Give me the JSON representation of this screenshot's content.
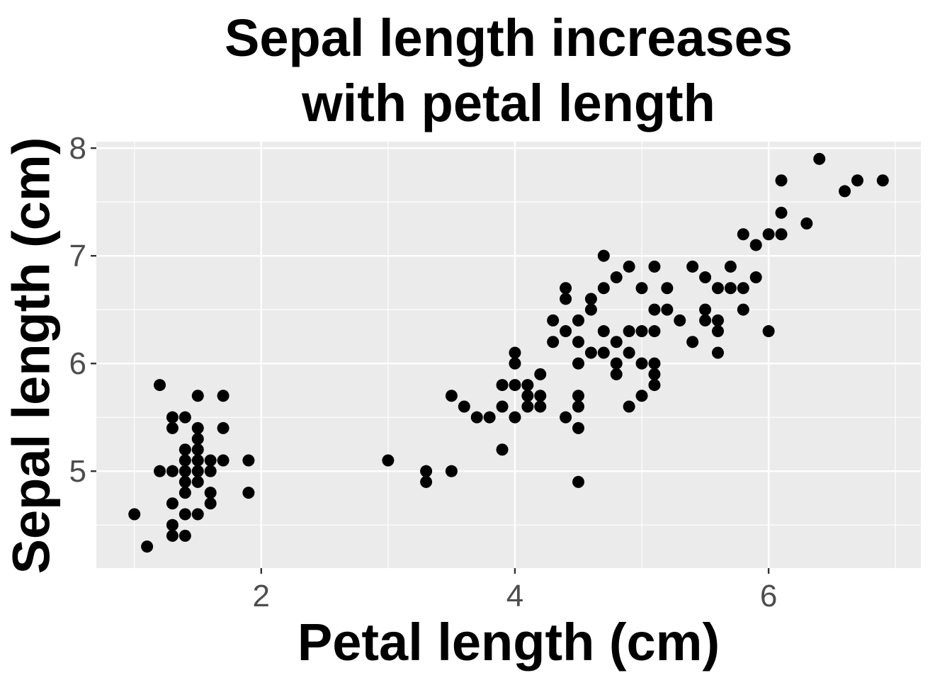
{
  "chart_data": {
    "type": "scatter",
    "title": "Sepal length increases\nwith petal length",
    "xlabel": "Petal length (cm)",
    "ylabel": "Sepal length (cm)",
    "xlim": [
      0.7,
      7.2
    ],
    "ylim": [
      4.1,
      8.06
    ],
    "x_ticks": [
      2,
      4,
      6
    ],
    "y_ticks": [
      5,
      6,
      7,
      8
    ],
    "x_tick_labels": [
      "2",
      "4",
      "6"
    ],
    "y_tick_labels": [
      "5",
      "6",
      "7",
      "8"
    ],
    "grid": true,
    "point_color": "#000000",
    "panel_color": "#ebebeb",
    "points": [
      {
        "x": 1.0,
        "y": 4.6
      },
      {
        "x": 1.1,
        "y": 4.3
      },
      {
        "x": 1.2,
        "y": 5.8
      },
      {
        "x": 1.2,
        "y": 5.0
      },
      {
        "x": 1.3,
        "y": 5.5
      },
      {
        "x": 1.3,
        "y": 5.4
      },
      {
        "x": 1.3,
        "y": 5.0
      },
      {
        "x": 1.3,
        "y": 4.7
      },
      {
        "x": 1.3,
        "y": 4.5
      },
      {
        "x": 1.3,
        "y": 4.4
      },
      {
        "x": 1.4,
        "y": 5.5
      },
      {
        "x": 1.4,
        "y": 5.2
      },
      {
        "x": 1.4,
        "y": 5.1
      },
      {
        "x": 1.4,
        "y": 5.0
      },
      {
        "x": 1.4,
        "y": 4.9
      },
      {
        "x": 1.4,
        "y": 4.8
      },
      {
        "x": 1.4,
        "y": 4.6
      },
      {
        "x": 1.4,
        "y": 4.4
      },
      {
        "x": 1.5,
        "y": 5.7
      },
      {
        "x": 1.5,
        "y": 5.4
      },
      {
        "x": 1.5,
        "y": 5.3
      },
      {
        "x": 1.5,
        "y": 5.2
      },
      {
        "x": 1.5,
        "y": 5.1
      },
      {
        "x": 1.5,
        "y": 5.0
      },
      {
        "x": 1.5,
        "y": 4.9
      },
      {
        "x": 1.5,
        "y": 4.6
      },
      {
        "x": 1.6,
        "y": 5.1
      },
      {
        "x": 1.6,
        "y": 5.0
      },
      {
        "x": 1.6,
        "y": 4.8
      },
      {
        "x": 1.6,
        "y": 4.7
      },
      {
        "x": 1.7,
        "y": 5.7
      },
      {
        "x": 1.7,
        "y": 5.4
      },
      {
        "x": 1.7,
        "y": 5.1
      },
      {
        "x": 1.9,
        "y": 5.1
      },
      {
        "x": 1.9,
        "y": 4.8
      },
      {
        "x": 3.0,
        "y": 5.1
      },
      {
        "x": 3.3,
        "y": 5.0
      },
      {
        "x": 3.3,
        "y": 4.9
      },
      {
        "x": 3.5,
        "y": 5.7
      },
      {
        "x": 3.5,
        "y": 5.0
      },
      {
        "x": 3.6,
        "y": 5.6
      },
      {
        "x": 3.7,
        "y": 5.5
      },
      {
        "x": 3.8,
        "y": 5.5
      },
      {
        "x": 3.9,
        "y": 5.8
      },
      {
        "x": 3.9,
        "y": 5.6
      },
      {
        "x": 3.9,
        "y": 5.2
      },
      {
        "x": 4.0,
        "y": 6.1
      },
      {
        "x": 4.0,
        "y": 6.0
      },
      {
        "x": 4.0,
        "y": 5.8
      },
      {
        "x": 4.0,
        "y": 5.5
      },
      {
        "x": 4.1,
        "y": 5.8
      },
      {
        "x": 4.1,
        "y": 5.7
      },
      {
        "x": 4.1,
        "y": 5.6
      },
      {
        "x": 4.2,
        "y": 5.9
      },
      {
        "x": 4.2,
        "y": 5.7
      },
      {
        "x": 4.2,
        "y": 5.6
      },
      {
        "x": 4.3,
        "y": 6.4
      },
      {
        "x": 4.3,
        "y": 6.2
      },
      {
        "x": 4.4,
        "y": 6.7
      },
      {
        "x": 4.4,
        "y": 6.6
      },
      {
        "x": 4.4,
        "y": 6.3
      },
      {
        "x": 4.4,
        "y": 5.5
      },
      {
        "x": 4.5,
        "y": 6.4
      },
      {
        "x": 4.5,
        "y": 6.2
      },
      {
        "x": 4.5,
        "y": 6.0
      },
      {
        "x": 4.5,
        "y": 5.7
      },
      {
        "x": 4.5,
        "y": 5.6
      },
      {
        "x": 4.5,
        "y": 5.4
      },
      {
        "x": 4.5,
        "y": 4.9
      },
      {
        "x": 4.6,
        "y": 6.6
      },
      {
        "x": 4.6,
        "y": 6.5
      },
      {
        "x": 4.6,
        "y": 6.1
      },
      {
        "x": 4.7,
        "y": 7.0
      },
      {
        "x": 4.7,
        "y": 6.7
      },
      {
        "x": 4.7,
        "y": 6.3
      },
      {
        "x": 4.7,
        "y": 6.1
      },
      {
        "x": 4.8,
        "y": 6.8
      },
      {
        "x": 4.8,
        "y": 6.2
      },
      {
        "x": 4.8,
        "y": 6.0
      },
      {
        "x": 4.8,
        "y": 5.9
      },
      {
        "x": 4.9,
        "y": 6.9
      },
      {
        "x": 4.9,
        "y": 6.3
      },
      {
        "x": 4.9,
        "y": 6.1
      },
      {
        "x": 4.9,
        "y": 5.6
      },
      {
        "x": 5.0,
        "y": 6.7
      },
      {
        "x": 5.0,
        "y": 6.3
      },
      {
        "x": 5.0,
        "y": 6.0
      },
      {
        "x": 5.0,
        "y": 5.7
      },
      {
        "x": 5.1,
        "y": 6.9
      },
      {
        "x": 5.1,
        "y": 6.5
      },
      {
        "x": 5.1,
        "y": 6.3
      },
      {
        "x": 5.1,
        "y": 6.0
      },
      {
        "x": 5.1,
        "y": 5.9
      },
      {
        "x": 5.1,
        "y": 5.8
      },
      {
        "x": 5.2,
        "y": 6.7
      },
      {
        "x": 5.2,
        "y": 6.5
      },
      {
        "x": 5.3,
        "y": 6.4
      },
      {
        "x": 5.4,
        "y": 6.9
      },
      {
        "x": 5.4,
        "y": 6.2
      },
      {
        "x": 5.5,
        "y": 6.8
      },
      {
        "x": 5.5,
        "y": 6.5
      },
      {
        "x": 5.5,
        "y": 6.4
      },
      {
        "x": 5.6,
        "y": 6.7
      },
      {
        "x": 5.6,
        "y": 6.4
      },
      {
        "x": 5.6,
        "y": 6.3
      },
      {
        "x": 5.6,
        "y": 6.1
      },
      {
        "x": 5.7,
        "y": 6.9
      },
      {
        "x": 5.7,
        "y": 6.7
      },
      {
        "x": 5.8,
        "y": 7.2
      },
      {
        "x": 5.8,
        "y": 6.7
      },
      {
        "x": 5.8,
        "y": 6.5
      },
      {
        "x": 5.9,
        "y": 7.1
      },
      {
        "x": 5.9,
        "y": 6.8
      },
      {
        "x": 6.0,
        "y": 7.2
      },
      {
        "x": 6.0,
        "y": 6.3
      },
      {
        "x": 6.1,
        "y": 7.7
      },
      {
        "x": 6.1,
        "y": 7.4
      },
      {
        "x": 6.1,
        "y": 7.2
      },
      {
        "x": 6.3,
        "y": 7.3
      },
      {
        "x": 6.4,
        "y": 7.9
      },
      {
        "x": 6.6,
        "y": 7.6
      },
      {
        "x": 6.7,
        "y": 7.7
      },
      {
        "x": 6.9,
        "y": 7.7
      }
    ]
  }
}
